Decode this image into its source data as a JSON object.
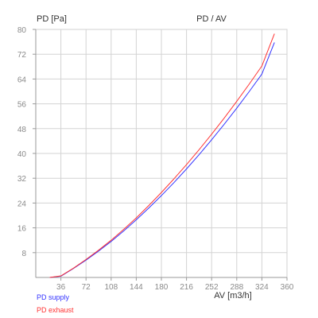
{
  "chart_data": {
    "type": "line",
    "title": "PD / AV",
    "xlabel": "AV [m3/h]",
    "ylabel": "PD [Pa]",
    "xlim": [
      0,
      360
    ],
    "ylim": [
      0,
      80
    ],
    "x_ticks": [
      36,
      72,
      108,
      144,
      180,
      216,
      252,
      288,
      324,
      360
    ],
    "y_ticks": [
      8,
      16,
      24,
      32,
      40,
      48,
      56,
      64,
      72,
      80
    ],
    "grid": true,
    "legend_placement": "bottom-left",
    "series": [
      {
        "name": "PD supply",
        "color": "#3333ff",
        "x": [
          20,
          36,
          54,
          72,
          90,
          108,
          126,
          144,
          162,
          180,
          198,
          216,
          234,
          252,
          270,
          288,
          306,
          324,
          342
        ],
        "y": [
          0,
          0.4,
          2.9,
          5.6,
          8.5,
          11.6,
          15.0,
          18.6,
          22.4,
          26.4,
          30.6,
          35.0,
          39.6,
          44.4,
          49.4,
          54.6,
          60.0,
          65.6,
          75.8
        ]
      },
      {
        "name": "PD exhaust",
        "color": "#ff3333",
        "x": [
          20,
          36,
          54,
          72,
          90,
          108,
          126,
          144,
          162,
          180,
          198,
          216,
          234,
          252,
          270,
          288,
          306,
          324,
          342
        ],
        "y": [
          0,
          0.5,
          3.0,
          5.8,
          8.8,
          12.0,
          15.5,
          19.2,
          23.2,
          27.4,
          31.8,
          36.4,
          41.2,
          46.2,
          51.4,
          56.8,
          62.4,
          68.2,
          78.6
        ]
      }
    ]
  }
}
